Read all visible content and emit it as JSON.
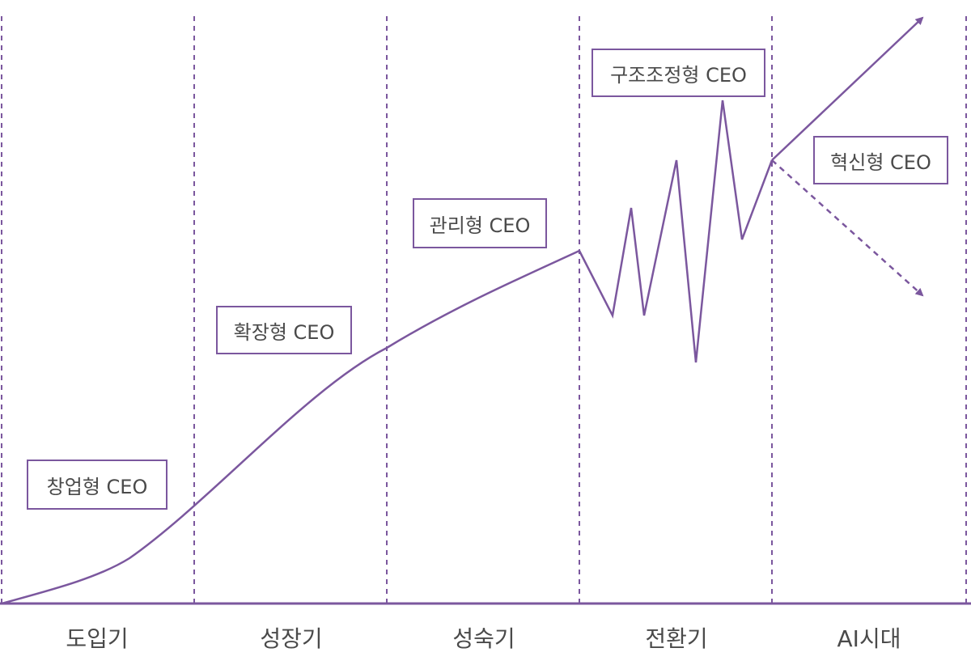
{
  "colors": {
    "accent": "#7b579e",
    "text": "#4a4a4a",
    "background": "#ffffff"
  },
  "phases": [
    {
      "label": "도입기"
    },
    {
      "label": "성장기"
    },
    {
      "label": "성숙기"
    },
    {
      "label": "전환기"
    },
    {
      "label": "AI시대"
    }
  ],
  "ceo_types": [
    {
      "label": "창업형 CEO"
    },
    {
      "label": "확장형 CEO"
    },
    {
      "label": "관리형 CEO"
    },
    {
      "label": "구조조정형 CEO"
    },
    {
      "label": "혁신형 CEO"
    }
  ]
}
